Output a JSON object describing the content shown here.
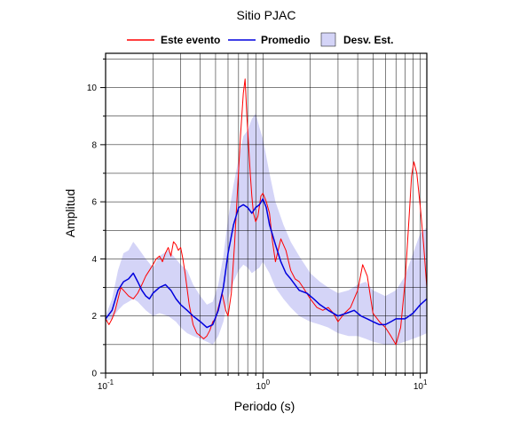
{
  "chart_data": {
    "type": "line",
    "title": "Sitio PJAC",
    "xlabel": "Periodo (s)",
    "ylabel": "Amplitud",
    "x_scale": "log",
    "xlim": [
      0.1,
      11
    ],
    "ylim": [
      0,
      11.2
    ],
    "grid": true,
    "legend_position": "top",
    "x_ticks": [
      {
        "value": 0.1,
        "base": "10",
        "exp": "-1"
      },
      {
        "value": 1,
        "base": "10",
        "exp": "0"
      },
      {
        "value": 10,
        "base": "10",
        "exp": "1"
      }
    ],
    "y_ticks": [
      "0",
      "2",
      "4",
      "6",
      "8",
      "10"
    ],
    "colors": {
      "event": "#ff0000",
      "mean": "#0000dd",
      "band_fill": "#d4d4f7",
      "band_stroke": "#000000"
    },
    "series": [
      {
        "name": "Este evento",
        "x": [
          0.1,
          0.105,
          0.11,
          0.115,
          0.12,
          0.125,
          0.13,
          0.14,
          0.15,
          0.16,
          0.17,
          0.18,
          0.19,
          0.2,
          0.21,
          0.22,
          0.23,
          0.24,
          0.25,
          0.26,
          0.27,
          0.28,
          0.29,
          0.3,
          0.31,
          0.32,
          0.34,
          0.36,
          0.38,
          0.4,
          0.42,
          0.44,
          0.46,
          0.48,
          0.5,
          0.52,
          0.55,
          0.58,
          0.6,
          0.63,
          0.66,
          0.69,
          0.72,
          0.75,
          0.77,
          0.79,
          0.81,
          0.83,
          0.85,
          0.87,
          0.9,
          0.93,
          0.97,
          1.0,
          1.05,
          1.1,
          1.15,
          1.2,
          1.3,
          1.4,
          1.5,
          1.6,
          1.7,
          1.8,
          2.0,
          2.2,
          2.4,
          2.6,
          2.8,
          3.0,
          3.3,
          3.6,
          4.0,
          4.3,
          4.6,
          5.0,
          5.5,
          6.0,
          6.5,
          7.0,
          7.5,
          8.0,
          8.5,
          8.8,
          9.1,
          9.5,
          10.0,
          10.5,
          11.0
        ],
        "y": [
          1.9,
          1.7,
          1.9,
          2.2,
          2.6,
          3.0,
          2.9,
          2.7,
          2.6,
          2.8,
          3.1,
          3.4,
          3.6,
          3.8,
          4.0,
          4.1,
          3.9,
          4.2,
          4.4,
          4.1,
          4.6,
          4.5,
          4.3,
          4.4,
          4.0,
          3.5,
          2.4,
          1.7,
          1.4,
          1.3,
          1.2,
          1.3,
          1.5,
          1.8,
          1.9,
          2.3,
          2.8,
          2.2,
          2.0,
          2.8,
          4.5,
          6.5,
          8.3,
          9.8,
          10.3,
          9.0,
          8.0,
          7.0,
          6.2,
          5.6,
          5.3,
          5.5,
          6.2,
          6.3,
          6.0,
          5.6,
          4.6,
          3.9,
          4.7,
          4.3,
          3.6,
          3.3,
          3.2,
          3.0,
          2.6,
          2.3,
          2.2,
          2.3,
          2.1,
          1.8,
          2.1,
          2.3,
          2.9,
          3.8,
          3.4,
          2.1,
          1.8,
          1.6,
          1.3,
          1.0,
          1.6,
          3.2,
          5.5,
          6.9,
          7.4,
          7.0,
          5.8,
          4.5,
          3.0
        ]
      },
      {
        "name": "Promedio",
        "x": [
          0.1,
          0.11,
          0.12,
          0.13,
          0.14,
          0.15,
          0.16,
          0.17,
          0.18,
          0.19,
          0.2,
          0.22,
          0.24,
          0.26,
          0.28,
          0.3,
          0.33,
          0.36,
          0.4,
          0.44,
          0.48,
          0.52,
          0.56,
          0.6,
          0.65,
          0.7,
          0.75,
          0.8,
          0.85,
          0.9,
          0.95,
          1.0,
          1.05,
          1.1,
          1.2,
          1.3,
          1.4,
          1.5,
          1.7,
          1.9,
          2.1,
          2.3,
          2.6,
          3.0,
          3.4,
          3.8,
          4.2,
          4.6,
          5.0,
          5.5,
          6.0,
          6.5,
          7.0,
          8.0,
          9.0,
          10.0,
          11.0
        ],
        "y": [
          1.9,
          2.2,
          2.9,
          3.2,
          3.3,
          3.5,
          3.2,
          2.9,
          2.7,
          2.6,
          2.8,
          3.0,
          3.1,
          2.9,
          2.6,
          2.4,
          2.2,
          2.0,
          1.8,
          1.6,
          1.7,
          2.2,
          3.0,
          4.2,
          5.2,
          5.8,
          5.9,
          5.8,
          5.6,
          5.8,
          5.9,
          6.1,
          5.8,
          5.2,
          4.5,
          3.9,
          3.5,
          3.3,
          2.9,
          2.8,
          2.6,
          2.4,
          2.2,
          2.0,
          2.1,
          2.2,
          2.0,
          1.9,
          1.8,
          1.7,
          1.7,
          1.8,
          1.9,
          1.9,
          2.1,
          2.4,
          2.6
        ]
      }
    ],
    "band": {
      "name": "Desv. Est.",
      "x": [
        0.1,
        0.11,
        0.12,
        0.13,
        0.14,
        0.15,
        0.16,
        0.18,
        0.2,
        0.22,
        0.25,
        0.28,
        0.3,
        0.33,
        0.36,
        0.4,
        0.44,
        0.48,
        0.52,
        0.56,
        0.6,
        0.65,
        0.7,
        0.75,
        0.8,
        0.85,
        0.9,
        0.95,
        1.0,
        1.1,
        1.2,
        1.35,
        1.5,
        1.7,
        2.0,
        2.3,
        2.6,
        3.0,
        3.5,
        4.0,
        4.5,
        5.0,
        6.0,
        7.0,
        8.0,
        9.0,
        10.0,
        11.0
      ],
      "upper": [
        2.0,
        2.6,
        3.6,
        4.2,
        4.3,
        4.6,
        4.4,
        4.0,
        3.7,
        4.1,
        4.3,
        4.0,
        3.8,
        3.6,
        3.1,
        2.7,
        2.4,
        2.5,
        3.1,
        4.1,
        5.4,
        6.6,
        7.5,
        8.3,
        8.5,
        8.9,
        9.1,
        8.6,
        8.2,
        7.0,
        6.0,
        5.2,
        4.6,
        4.1,
        3.5,
        3.2,
        3.0,
        2.8,
        2.9,
        3.1,
        3.2,
        2.9,
        2.7,
        2.9,
        3.4,
        4.2,
        4.9,
        5.1
      ],
      "lower": [
        1.8,
        1.9,
        2.2,
        2.4,
        2.5,
        2.6,
        2.5,
        2.2,
        2.0,
        2.1,
        2.0,
        1.8,
        1.6,
        1.4,
        1.3,
        1.2,
        1.1,
        1.0,
        1.3,
        1.8,
        2.6,
        3.2,
        3.6,
        3.8,
        3.7,
        3.5,
        3.6,
        3.7,
        3.9,
        3.5,
        3.0,
        2.6,
        2.3,
        2.0,
        1.8,
        1.7,
        1.6,
        1.4,
        1.3,
        1.3,
        1.2,
        1.1,
        1.0,
        1.0,
        1.1,
        1.2,
        1.3,
        1.4
      ]
    }
  }
}
